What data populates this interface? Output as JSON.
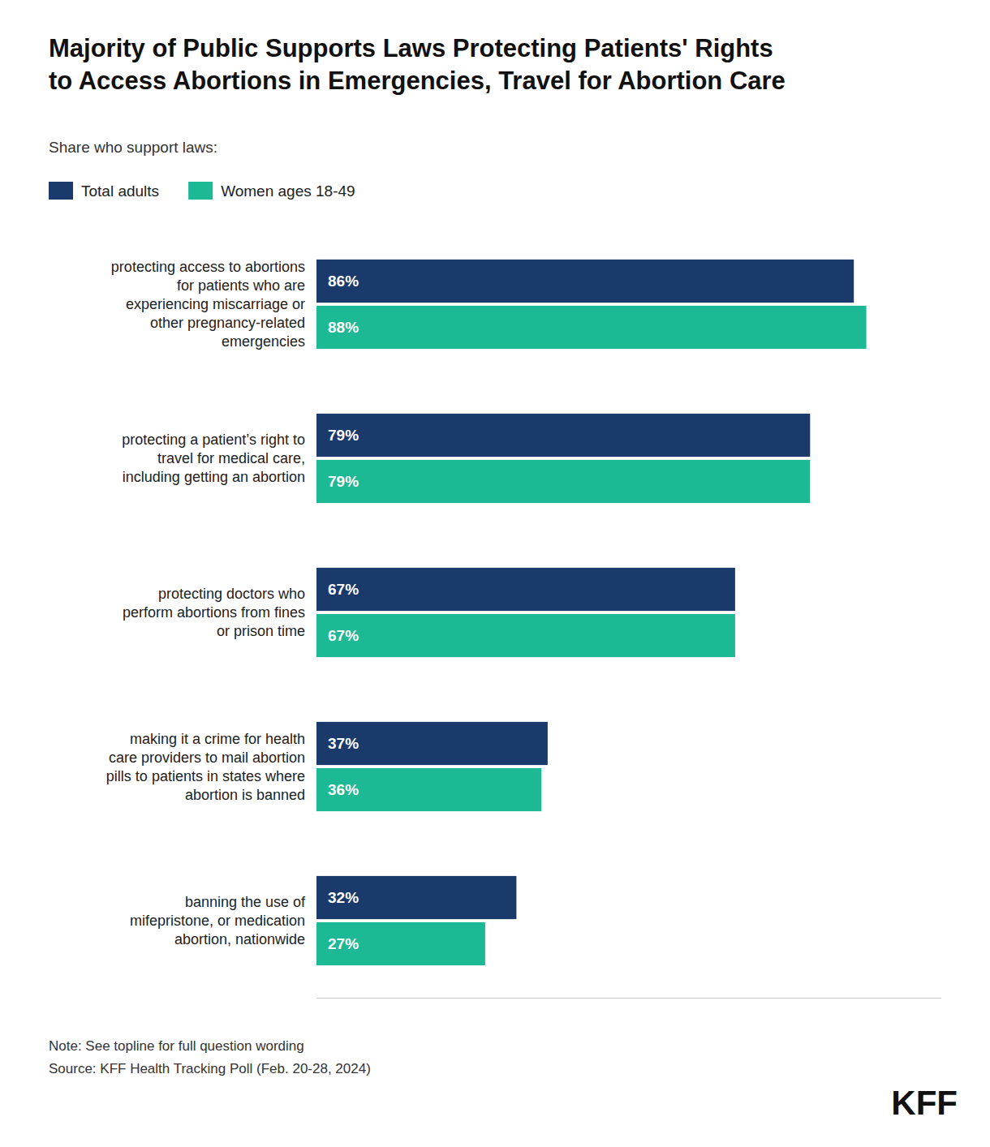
{
  "chart_data": {
    "type": "bar",
    "orientation": "horizontal",
    "title": "Majority of Public Supports Laws Protecting Patients' Rights\nto Access Abortions in Emergencies, Travel for Abortion Care",
    "subtitle": "Share who support laws:",
    "categories": [
      "protecting access to abortions\nfor patients who are\nexperiencing miscarriage or\nother pregnancy-related\nemergencies",
      "protecting a patient’s right to\ntravel for medical care,\nincluding getting an abortion",
      "protecting doctors who\nperform abortions from fines\nor prison time",
      "making it a crime for health\ncare providers to mail abortion\npills to patients in states where\nabortion is banned",
      "banning the use of\nmifepristone, or medication\nabortion, nationwide"
    ],
    "series": [
      {
        "name": "Total adults",
        "color": "#1a3a6b",
        "values": [
          86,
          79,
          67,
          37,
          32
        ],
        "value_labels": [
          "86%",
          "79%",
          "67%",
          "37%",
          "32%"
        ]
      },
      {
        "name": "Women ages 18-49",
        "color": "#1db894",
        "values": [
          88,
          79,
          67,
          36,
          27
        ],
        "value_labels": [
          "88%",
          "79%",
          "67%",
          "36%",
          "27%"
        ]
      }
    ],
    "xlim": [
      0,
      100
    ],
    "tick_labels": false,
    "grid": false,
    "legend": "top",
    "data_labels": true,
    "annotations": [
      "Note: See topline for full question wording",
      "Source: KFF Health Tracking Poll (Feb. 20-28, 2024)",
      "KFF"
    ]
  }
}
